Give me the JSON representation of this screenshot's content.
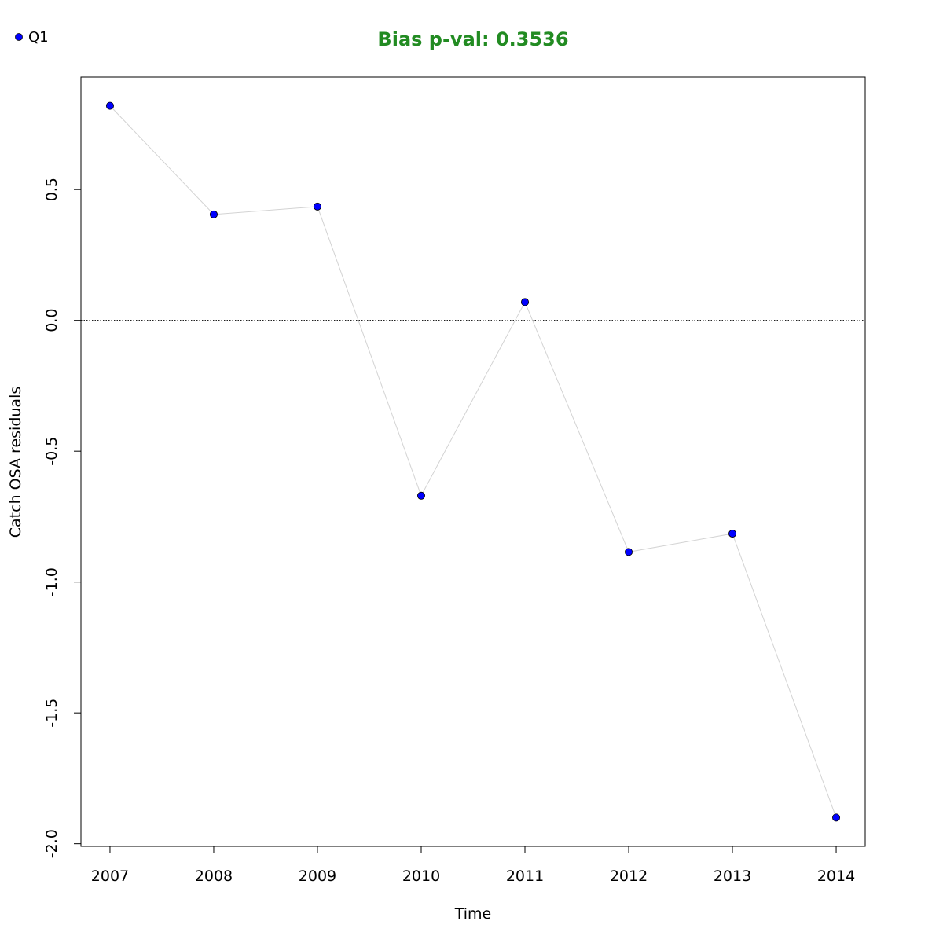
{
  "chart_data": {
    "type": "line",
    "title": "Bias p-val: 0.3536",
    "xlabel": "Time",
    "ylabel": "Catch OSA residuals",
    "x": [
      2007,
      2008,
      2009,
      2010,
      2011,
      2012,
      2013,
      2014
    ],
    "x_tick_labels": [
      "2007",
      "2008",
      "2009",
      "2010",
      "2011",
      "2012",
      "2013",
      "2014"
    ],
    "y_ticks": [
      0.5,
      0.0,
      -0.5,
      -1.0,
      -1.5,
      -2.0
    ],
    "y_tick_labels": [
      "0.5",
      "0.0",
      "-0.5",
      "-1.0",
      "-1.5",
      "-2.0"
    ],
    "xlim": [
      2006.72,
      2014.28
    ],
    "ylim": [
      -2.01,
      0.93
    ],
    "reference_line_y": 0,
    "series": [
      {
        "name": "Q1",
        "values": [
          0.82,
          0.405,
          0.435,
          -0.67,
          0.07,
          -0.885,
          -0.815,
          -1.9
        ]
      }
    ],
    "legend": {
      "position": "top-left"
    },
    "colors": {
      "title": "#228B22",
      "points": "#0000ff",
      "point_outline": "#000000",
      "line": "#d3d3d3",
      "reference_line": "#000000"
    }
  }
}
